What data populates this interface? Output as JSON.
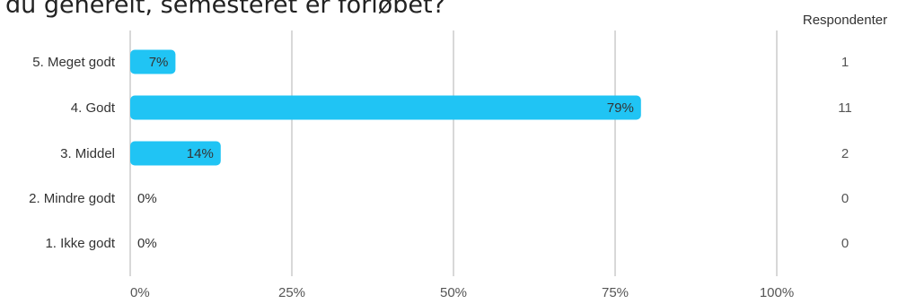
{
  "chart_data": {
    "type": "bar",
    "orientation": "horizontal",
    "title": "du generelt, semesteret er forløbet?",
    "categories": [
      "5. Meget godt",
      "4. Godt",
      "3. Middel",
      "2. Mindre godt",
      "1. Ikke godt"
    ],
    "values": [
      7,
      79,
      14,
      0,
      0
    ],
    "value_labels": [
      "7%",
      "79%",
      "14%",
      "0%",
      "0%"
    ],
    "respondents_header": "Respondenter",
    "respondents": [
      "1",
      "11",
      "2",
      "0",
      "0"
    ],
    "x_ticks": [
      "0%",
      "25%",
      "50%",
      "75%",
      "100%"
    ],
    "xlim": [
      0,
      100
    ],
    "grid": true,
    "legend": "none",
    "colors": {
      "bar": "#20c4f4",
      "grid": "#cccccc",
      "text": "#333333",
      "label_text": "#555555"
    }
  }
}
